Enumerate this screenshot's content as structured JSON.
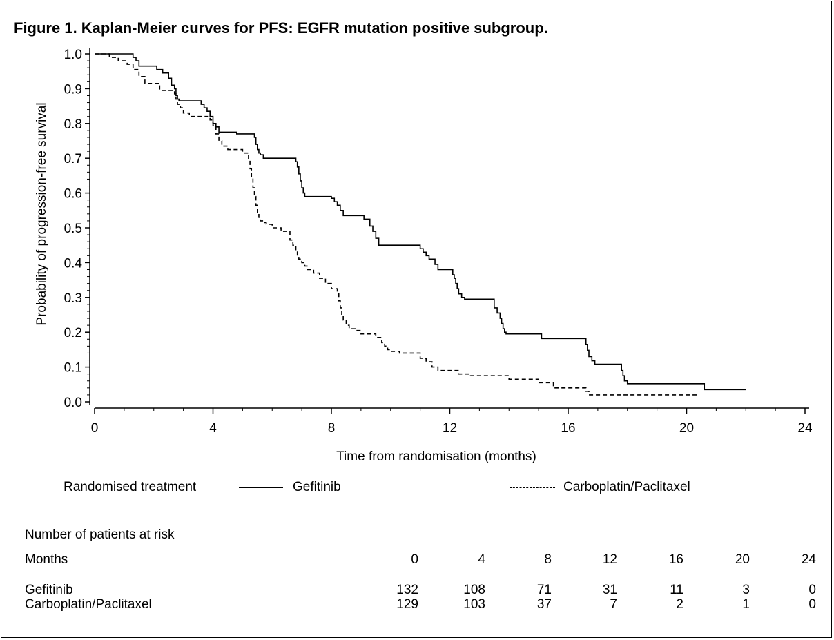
{
  "title": "Figure 1. Kaplan-Meier curves for PFS: EGFR mutation positive subgroup.",
  "chart_data": {
    "type": "line",
    "ylabel": "Probability of progression-free survival",
    "xlabel": "Time from randomisation (months)",
    "xlim": [
      0,
      24
    ],
    "ylim": [
      0,
      1.0
    ],
    "x_ticks": [
      0,
      4,
      8,
      12,
      16,
      20,
      24
    ],
    "x_tick_labels": [
      "0",
      "4",
      "8",
      "12",
      "16",
      "20",
      "24"
    ],
    "y_ticks": [
      0,
      0.1,
      0.2,
      0.3,
      0.4,
      0.5,
      0.6,
      0.7,
      0.8,
      0.9,
      1.0
    ],
    "y_tick_labels": [
      "0.0",
      "0.1",
      "0.2",
      "0.3",
      "0.4",
      "0.5",
      "0.6",
      "0.7",
      "0.8",
      "0.9",
      "1.0"
    ],
    "grid": false,
    "series": [
      {
        "name": "Gefitinib",
        "style": "solid",
        "color": "#000000",
        "x": [
          0,
          1.3,
          1.4,
          1.5,
          2.1,
          2.3,
          2.5,
          2.6,
          2.7,
          2.75,
          2.8,
          2.85,
          2.9,
          3.6,
          3.7,
          3.8,
          3.9,
          4.0,
          4.1,
          4.2,
          4.5,
          4.8,
          5.4,
          5.45,
          5.5,
          5.55,
          5.6,
          5.7,
          5.8,
          6.1,
          6.8,
          6.85,
          6.9,
          6.95,
          7.0,
          7.05,
          7.1,
          8.0,
          8.1,
          8.2,
          8.3,
          8.4,
          9.1,
          9.3,
          9.4,
          9.5,
          9.6,
          11.0,
          11.1,
          11.2,
          11.3,
          11.5,
          11.6,
          12.1,
          12.15,
          12.2,
          12.25,
          12.3,
          12.4,
          12.5,
          13.5,
          13.6,
          13.7,
          13.75,
          13.8,
          13.85,
          13.9,
          15.1,
          16.6,
          16.65,
          16.7,
          16.8,
          16.9,
          17.0,
          17.8,
          17.85,
          17.9,
          18.0,
          20.6,
          22.0
        ],
        "y": [
          1.0,
          0.99,
          0.98,
          0.965,
          0.955,
          0.945,
          0.93,
          0.91,
          0.9,
          0.88,
          0.87,
          0.865,
          0.865,
          0.855,
          0.845,
          0.835,
          0.82,
          0.8,
          0.79,
          0.775,
          0.775,
          0.77,
          0.76,
          0.74,
          0.725,
          0.715,
          0.71,
          0.7,
          0.7,
          0.7,
          0.69,
          0.675,
          0.655,
          0.635,
          0.615,
          0.6,
          0.59,
          0.585,
          0.575,
          0.565,
          0.55,
          0.535,
          0.525,
          0.505,
          0.49,
          0.47,
          0.45,
          0.44,
          0.43,
          0.42,
          0.41,
          0.395,
          0.38,
          0.365,
          0.355,
          0.34,
          0.325,
          0.31,
          0.3,
          0.295,
          0.27,
          0.255,
          0.24,
          0.225,
          0.21,
          0.2,
          0.195,
          0.182,
          0.165,
          0.148,
          0.13,
          0.118,
          0.108,
          0.108,
          0.09,
          0.075,
          0.06,
          0.052,
          0.035,
          0.035
        ]
      },
      {
        "name": "Carboplatin/Paclitaxel",
        "style": "dashed",
        "color": "#000000",
        "x": [
          0,
          0.5,
          0.8,
          1.1,
          1.3,
          1.5,
          1.7,
          2.2,
          2.7,
          2.75,
          2.8,
          2.9,
          3.0,
          3.2,
          3.5,
          3.9,
          4.0,
          4.1,
          4.2,
          4.3,
          4.5,
          5.0,
          5.2,
          5.25,
          5.3,
          5.35,
          5.4,
          5.45,
          5.5,
          5.55,
          5.6,
          5.7,
          5.8,
          6.0,
          6.3,
          6.6,
          6.7,
          6.8,
          6.85,
          6.9,
          7.0,
          7.1,
          7.2,
          7.4,
          7.6,
          7.8,
          8.0,
          8.2,
          8.25,
          8.3,
          8.35,
          8.4,
          8.5,
          8.6,
          8.8,
          9.0,
          9.5,
          9.7,
          9.8,
          9.9,
          10.0,
          10.3,
          11.0,
          11.2,
          11.4,
          11.6,
          12.3,
          12.7,
          14.0,
          15.0,
          15.5,
          16.6,
          16.7,
          20.4
        ],
        "y": [
          1.0,
          0.99,
          0.98,
          0.97,
          0.955,
          0.935,
          0.915,
          0.895,
          0.885,
          0.87,
          0.855,
          0.845,
          0.83,
          0.82,
          0.82,
          0.81,
          0.795,
          0.77,
          0.75,
          0.735,
          0.725,
          0.715,
          0.695,
          0.67,
          0.645,
          0.615,
          0.59,
          0.565,
          0.545,
          0.53,
          0.52,
          0.515,
          0.51,
          0.5,
          0.49,
          0.465,
          0.45,
          0.435,
          0.42,
          0.41,
          0.4,
          0.39,
          0.38,
          0.37,
          0.355,
          0.34,
          0.325,
          0.31,
          0.29,
          0.27,
          0.25,
          0.235,
          0.22,
          0.21,
          0.205,
          0.195,
          0.185,
          0.17,
          0.16,
          0.15,
          0.145,
          0.14,
          0.125,
          0.115,
          0.1,
          0.09,
          0.08,
          0.075,
          0.065,
          0.055,
          0.04,
          0.03,
          0.02,
          0.02
        ]
      }
    ]
  },
  "legend": {
    "heading": "Randomised treatment",
    "items": [
      "Gefitinib",
      "Carboplatin/Paclitaxel"
    ]
  },
  "risk_table": {
    "heading": "Number of patients at risk",
    "months_label": "Months",
    "months": [
      "0",
      "4",
      "8",
      "12",
      "16",
      "20",
      "24"
    ],
    "rows": [
      {
        "label": "Gefitinib",
        "values": [
          "132",
          "108",
          "71",
          "31",
          "11",
          "3",
          "0"
        ]
      },
      {
        "label": "Carboplatin/Paclitaxel",
        "values": [
          "129",
          "103",
          "37",
          "7",
          "2",
          "1",
          "0"
        ]
      }
    ]
  }
}
